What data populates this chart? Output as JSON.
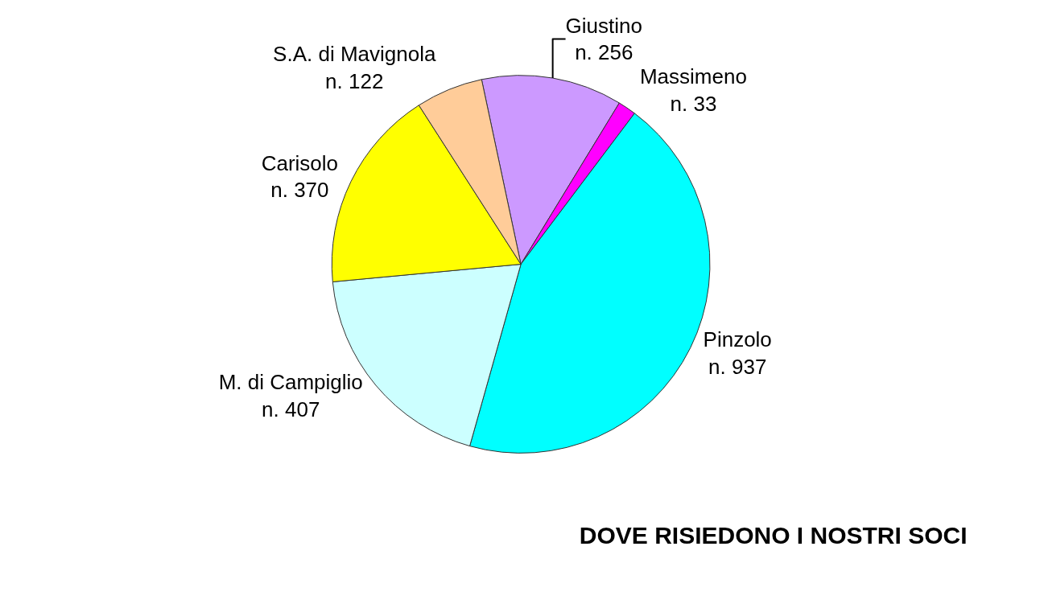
{
  "chart_data": {
    "type": "pie",
    "title": "DOVE RISIEDONO I NOSTRI SOCI",
    "categories": [
      "Giustino",
      "Massimeno",
      "Pinzolo",
      "M. di Campiglio",
      "Carisolo",
      "S.A. di Mavignola"
    ],
    "values": [
      256,
      33,
      937,
      407,
      370,
      122
    ],
    "value_labels": [
      "n. 256",
      "n. 33",
      "n. 937",
      "n. 407",
      "n. 370",
      "n. 122"
    ],
    "colors": [
      "#cc99ff",
      "#ff00ff",
      "#00ffff",
      "#ccffff",
      "#ffff00",
      "#ffcc99"
    ],
    "legend": false
  }
}
